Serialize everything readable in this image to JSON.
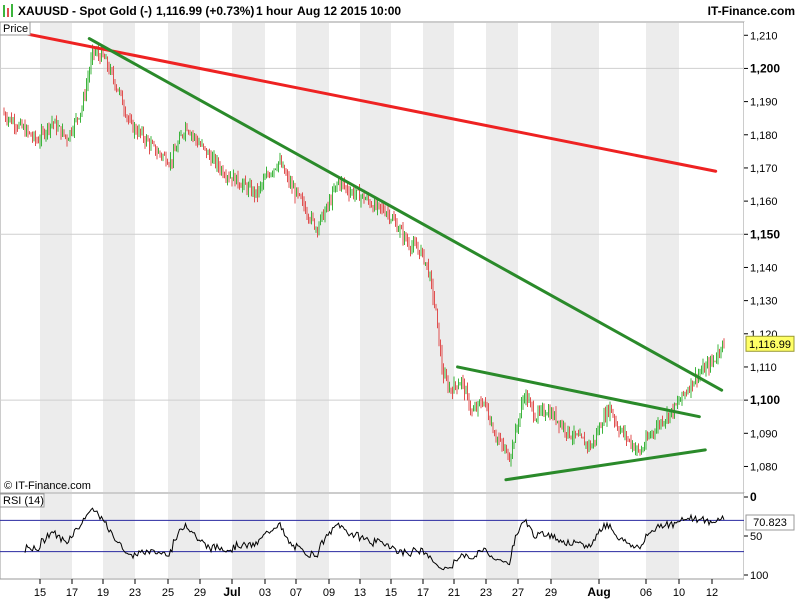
{
  "header": {
    "symbol": "XAUUSD - Spot Gold (-)",
    "last_change": "1,116.99 (+0.73%)",
    "timeframe": "1 hour",
    "timestamp": "Aug 12 2015 10:00",
    "brand": "IT-Finance.com"
  },
  "price_panel": {
    "label": "Price",
    "watermark": "© IT-Finance.com",
    "last_price_label": "1,116.99",
    "last_price": 1116.99
  },
  "rsi_panel": {
    "label": "RSI (14)",
    "last_value_label": "70.823",
    "last_value": 70.823,
    "levels": [
      70,
      30
    ],
    "tick_labels": [
      "100",
      "50",
      "0"
    ]
  },
  "colors": {
    "bull_candle": "#3cb43c",
    "bear_candle": "#e05050",
    "resistance_long": "#ee2222",
    "trendline": "#2a8a2a",
    "rsi_line": "#000000",
    "rsi_level": "#2a2aa0",
    "grid_band": "#ececec"
  },
  "chart_data": [
    {
      "type": "candlestick",
      "title": "XAUUSD - Spot Gold (-)",
      "interval": "1 hour",
      "ylim": [
        1072,
        1214
      ],
      "y_ticks": [
        1080,
        1090,
        1100,
        1110,
        1120,
        1130,
        1140,
        1150,
        1160,
        1170,
        1180,
        1190,
        1200,
        1210
      ],
      "y_tick_labels": [
        "1,080",
        "1,090",
        "1,100",
        "1,110",
        "1,120",
        "1,130",
        "1,140",
        "1,150",
        "1,160",
        "1,170",
        "1,180",
        "1,190",
        "1,200",
        "1,210"
      ],
      "y_major_ticks": [
        1100,
        1150,
        1200
      ],
      "x_tick_labels": [
        "15",
        "17",
        "19",
        "23",
        "25",
        "29",
        "Jul",
        "03",
        "07",
        "09",
        "13",
        "15",
        "17",
        "21",
        "23",
        "27",
        "29",
        "Aug",
        "06",
        "10",
        "12"
      ],
      "x_major_labels": [
        "Jul",
        "Aug"
      ],
      "price_path": [
        [
          0.0,
          1187
        ],
        [
          0.03,
          1182
        ],
        [
          0.05,
          1178
        ],
        [
          0.07,
          1184
        ],
        [
          0.09,
          1179
        ],
        [
          0.11,
          1188
        ],
        [
          0.125,
          1205
        ],
        [
          0.14,
          1203
        ],
        [
          0.16,
          1193
        ],
        [
          0.175,
          1183
        ],
        [
          0.19,
          1180
        ],
        [
          0.21,
          1175
        ],
        [
          0.23,
          1172
        ],
        [
          0.25,
          1183
        ],
        [
          0.265,
          1178
        ],
        [
          0.28,
          1174
        ],
        [
          0.3,
          1169
        ],
        [
          0.32,
          1166
        ],
        [
          0.345,
          1162
        ],
        [
          0.36,
          1168
        ],
        [
          0.375,
          1172
        ],
        [
          0.39,
          1165
        ],
        [
          0.41,
          1158
        ],
        [
          0.425,
          1152
        ],
        [
          0.44,
          1158
        ],
        [
          0.455,
          1166
        ],
        [
          0.47,
          1163
        ],
        [
          0.49,
          1161
        ],
        [
          0.505,
          1158
        ],
        [
          0.52,
          1157
        ],
        [
          0.535,
          1152
        ],
        [
          0.55,
          1147
        ],
        [
          0.565,
          1145
        ],
        [
          0.575,
          1140
        ],
        [
          0.585,
          1128
        ],
        [
          0.59,
          1118
        ],
        [
          0.595,
          1108
        ],
        [
          0.605,
          1103
        ],
        [
          0.62,
          1106
        ],
        [
          0.635,
          1096
        ],
        [
          0.65,
          1100
        ],
        [
          0.665,
          1090
        ],
        [
          0.675,
          1086
        ],
        [
          0.685,
          1083
        ],
        [
          0.695,
          1092
        ],
        [
          0.705,
          1102
        ],
        [
          0.72,
          1095
        ],
        [
          0.735,
          1097
        ],
        [
          0.75,
          1094
        ],
        [
          0.765,
          1090
        ],
        [
          0.78,
          1088
        ],
        [
          0.795,
          1086
        ],
        [
          0.81,
          1094
        ],
        [
          0.82,
          1098
        ],
        [
          0.83,
          1092
        ],
        [
          0.845,
          1088
        ],
        [
          0.86,
          1084
        ],
        [
          0.875,
          1090
        ],
        [
          0.89,
          1094
        ],
        [
          0.905,
          1097
        ],
        [
          0.92,
          1102
        ],
        [
          0.935,
          1107
        ],
        [
          0.95,
          1110
        ],
        [
          0.96,
          1112
        ],
        [
          0.97,
          1117
        ]
      ],
      "trendlines": [
        {
          "name": "red",
          "color": "resistance_long",
          "from": [
            0.0,
            1212
          ],
          "to": [
            0.962,
            1169
          ]
        },
        {
          "name": "green-main",
          "color": "trendline",
          "from": [
            0.12,
            1209
          ],
          "to": [
            0.97,
            1103
          ]
        },
        {
          "name": "green-upper",
          "color": "trendline",
          "from": [
            0.615,
            1110
          ],
          "to": [
            0.94,
            1095
          ]
        },
        {
          "name": "green-lower",
          "color": "trendline",
          "from": [
            0.68,
            1076
          ],
          "to": [
            0.948,
            1085
          ]
        }
      ]
    },
    {
      "type": "line",
      "title": "RSI (14)",
      "ylim": [
        0,
        100
      ],
      "y_ticks": [
        0,
        50,
        100
      ],
      "last_value": 70.823,
      "levels": [
        70,
        30
      ]
    }
  ]
}
